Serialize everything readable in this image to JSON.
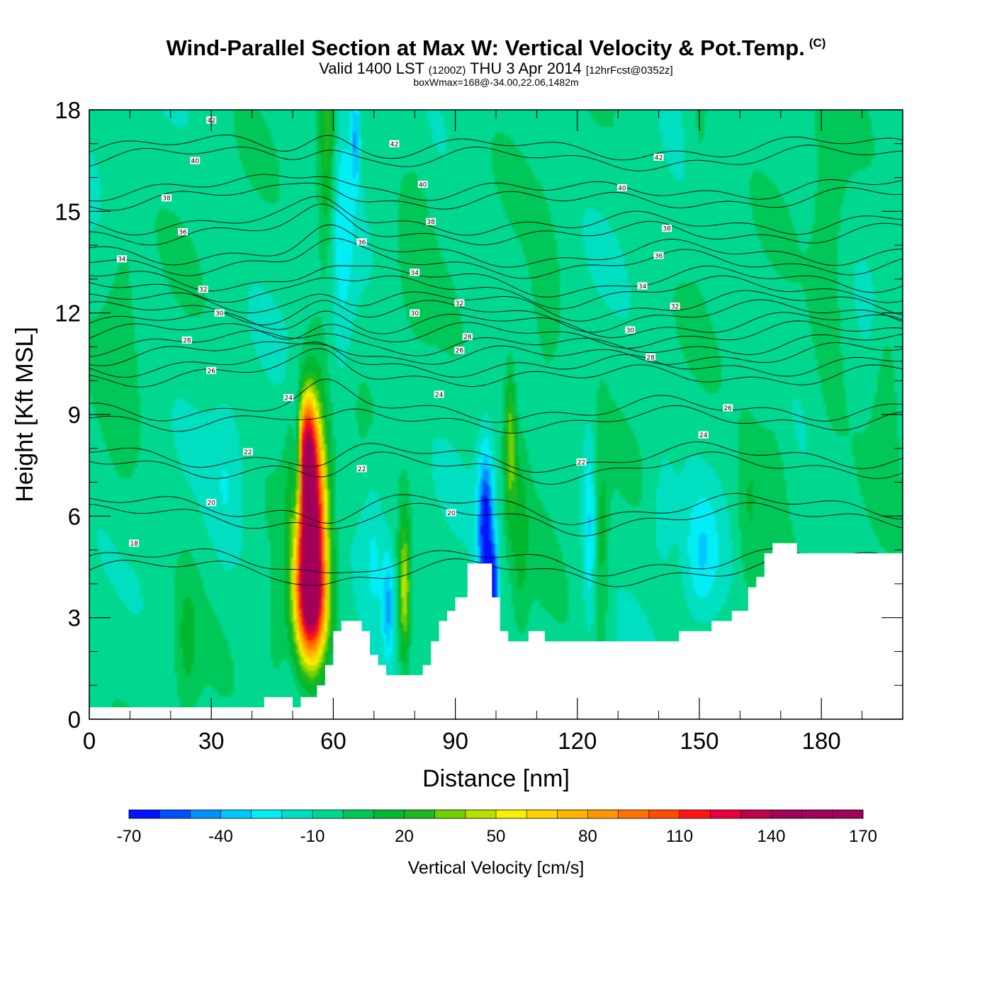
{
  "header": {
    "title": "Wind-Parallel Section at Max W: Vertical Velocity & Pot.Temp.",
    "copyright": "(C)",
    "valid_prefix": "Valid 1400 LST",
    "valid_utc": "(1200Z)",
    "valid_date": "THU 3 Apr 2014",
    "forecast_tag": "[12hrFcst@0352z]",
    "box_info": "boxWmax=168@-34.00,22.06,1482m"
  },
  "chart_data": {
    "type": "heatmap",
    "title": "Wind-Parallel Section at Max W: Vertical Velocity & Pot.Temp.",
    "xlabel": "Distance [nm]",
    "ylabel": "Height [Kft MSL]",
    "xlim": [
      0,
      200
    ],
    "ylim": [
      0,
      18
    ],
    "x_ticks": [
      0,
      30,
      60,
      90,
      120,
      150,
      180
    ],
    "y_ticks": [
      0,
      3,
      6,
      9,
      12,
      15,
      18
    ],
    "background_value": -5,
    "fill_variable": "Vertical Velocity [cm/s]",
    "contour_variable": "Potential temperature",
    "contour_levels": [
      18,
      20,
      22,
      24,
      26,
      28,
      30,
      32,
      34,
      36,
      38,
      40,
      42
    ],
    "terrain": [
      [
        0,
        0.35
      ],
      [
        43,
        0.35
      ],
      [
        43,
        0.65
      ],
      [
        50,
        0.65
      ],
      [
        50,
        0.35
      ],
      [
        52,
        0.35
      ],
      [
        52,
        0.65
      ],
      [
        56,
        0.65
      ],
      [
        56,
        1.0
      ],
      [
        58,
        1.0
      ],
      [
        58,
        1.6
      ],
      [
        60,
        1.6
      ],
      [
        60,
        2.6
      ],
      [
        62,
        2.6
      ],
      [
        62,
        2.9
      ],
      [
        67,
        2.9
      ],
      [
        67,
        2.6
      ],
      [
        69,
        2.6
      ],
      [
        69,
        1.9
      ],
      [
        71,
        1.9
      ],
      [
        71,
        1.6
      ],
      [
        73,
        1.6
      ],
      [
        73,
        1.3
      ],
      [
        82,
        1.3
      ],
      [
        82,
        1.6
      ],
      [
        84,
        1.6
      ],
      [
        84,
        2.3
      ],
      [
        86,
        2.3
      ],
      [
        86,
        2.9
      ],
      [
        88,
        2.9
      ],
      [
        88,
        3.2
      ],
      [
        90,
        3.2
      ],
      [
        90,
        3.6
      ],
      [
        93,
        3.6
      ],
      [
        93,
        4.6
      ],
      [
        99,
        4.6
      ],
      [
        99,
        3.6
      ],
      [
        101,
        3.6
      ],
      [
        101,
        2.6
      ],
      [
        103,
        2.6
      ],
      [
        103,
        2.3
      ],
      [
        108,
        2.3
      ],
      [
        108,
        2.6
      ],
      [
        112,
        2.6
      ],
      [
        112,
        2.3
      ],
      [
        145,
        2.3
      ],
      [
        145,
        2.6
      ],
      [
        153,
        2.6
      ],
      [
        153,
        2.9
      ],
      [
        158,
        2.9
      ],
      [
        158,
        3.2
      ],
      [
        162,
        3.2
      ],
      [
        162,
        3.9
      ],
      [
        164,
        3.9
      ],
      [
        164,
        4.2
      ],
      [
        166,
        4.2
      ],
      [
        166,
        4.9
      ],
      [
        168,
        4.9
      ],
      [
        168,
        5.2
      ],
      [
        174,
        5.2
      ],
      [
        174,
        4.9
      ],
      [
        200,
        4.9
      ]
    ],
    "features": [
      {
        "x": 54.5,
        "y": 5.8,
        "sx": 2.6,
        "sy": 2.2,
        "value": 168
      },
      {
        "x": 54.5,
        "y": 3.3,
        "sx": 2.8,
        "sy": 1.2,
        "value": 90
      },
      {
        "x": 53.5,
        "y": 8.2,
        "sx": 1.6,
        "sy": 1.0,
        "value": 70
      },
      {
        "x": 51.0,
        "y": 7.6,
        "sx": 0.8,
        "sy": 1.4,
        "value": -45
      },
      {
        "x": 58.5,
        "y": 16.8,
        "sx": 1.6,
        "sy": 2.2,
        "value": 35
      },
      {
        "x": 62.0,
        "y": 14.5,
        "sx": 2.2,
        "sy": 4.0,
        "value": -18
      },
      {
        "x": 65.5,
        "y": 17.2,
        "sx": 0.8,
        "sy": 1.0,
        "value": -35
      },
      {
        "x": 77.5,
        "y": 3.8,
        "sx": 1.0,
        "sy": 1.5,
        "value": 55
      },
      {
        "x": 73.5,
        "y": 3.3,
        "sx": 0.9,
        "sy": 1.1,
        "value": -30
      },
      {
        "x": 97.5,
        "y": 5.6,
        "sx": 1.4,
        "sy": 1.6,
        "value": -65
      },
      {
        "x": 99.5,
        "y": 3.9,
        "sx": 0.7,
        "sy": 0.8,
        "value": -55
      },
      {
        "x": 103.5,
        "y": 8.2,
        "sx": 1.0,
        "sy": 1.6,
        "value": 42
      },
      {
        "x": 106.0,
        "y": 5.5,
        "sx": 1.5,
        "sy": 2.0,
        "value": 18
      },
      {
        "x": 123.0,
        "y": 5.8,
        "sx": 1.2,
        "sy": 2.0,
        "value": -25
      },
      {
        "x": 126.0,
        "y": 5.0,
        "sx": 1.2,
        "sy": 2.2,
        "value": 20
      },
      {
        "x": 150.5,
        "y": 4.8,
        "sx": 3.0,
        "sy": 1.3,
        "value": -22
      },
      {
        "x": 141.0,
        "y": 6.0,
        "sx": 2.0,
        "sy": 1.2,
        "value": -12
      },
      {
        "x": 162.0,
        "y": 6.0,
        "sx": 2.0,
        "sy": 2.0,
        "value": 14
      },
      {
        "x": 168.0,
        "y": 7.2,
        "sx": 3.0,
        "sy": 1.8,
        "value": 12
      },
      {
        "x": 24.0,
        "y": 2.2,
        "sx": 2.0,
        "sy": 1.5,
        "value": 16
      },
      {
        "x": 34.0,
        "y": 7.0,
        "sx": 3.0,
        "sy": 1.8,
        "value": -12
      },
      {
        "x": 70.0,
        "y": 5.2,
        "sx": 2.0,
        "sy": 1.8,
        "value": -12
      },
      {
        "x": 46.0,
        "y": 2.4,
        "sx": 1.8,
        "sy": 1.2,
        "value": 12
      },
      {
        "x": 112.0,
        "y": 11.0,
        "sx": 3.0,
        "sy": 2.5,
        "value": 10
      },
      {
        "x": 182.0,
        "y": 14.0,
        "sx": 3.0,
        "sy": 4.0,
        "value": 12
      },
      {
        "x": 150.0,
        "y": 17.0,
        "sx": 2.0,
        "sy": 2.0,
        "value": 10
      },
      {
        "x": 8.0,
        "y": 12.0,
        "sx": 3.0,
        "sy": 4.0,
        "value": 9
      },
      {
        "x": 80.0,
        "y": 14.5,
        "sx": 3.0,
        "sy": 2.5,
        "value": 8
      },
      {
        "x": 196.0,
        "y": 9.5,
        "sx": 2.0,
        "sy": 2.0,
        "value": 14
      }
    ],
    "isentropes": [
      {
        "label": "18",
        "base": 4.4,
        "lx": 11,
        "ly": 5.2
      },
      {
        "label": "20",
        "base": 6.0,
        "lx": 30,
        "ly": 6.4
      },
      {
        "label": "22",
        "base": 7.5,
        "lx": 39,
        "ly": 7.9
      },
      {
        "label": "24",
        "base": 8.9,
        "lx": 49,
        "ly": 9.5
      },
      {
        "label": "26",
        "base": 10.2,
        "lx": 30,
        "ly": 10.3
      },
      {
        "label": "28",
        "base": 10.8,
        "lx": 24,
        "ly": 11.2
      },
      {
        "label": "30",
        "base": 11.4,
        "lx": 32,
        "ly": 12.0
      },
      {
        "label": "32",
        "base": 12.0,
        "lx": 28,
        "ly": 12.7
      },
      {
        "label": "34",
        "base": 12.7,
        "lx": 8,
        "ly": 13.6
      },
      {
        "label": "36",
        "base": 13.5,
        "lx": 24,
        "ly": 14.4
      },
      {
        "label": "38",
        "base": 14.4,
        "lx": 19,
        "ly": 15.4
      },
      {
        "label": "40",
        "base": 15.4,
        "lx": 26,
        "ly": 16.5
      },
      {
        "label": "42",
        "base": 16.6,
        "lx": 30,
        "ly": 17.7
      }
    ],
    "contour_labels": [
      {
        "text": "42",
        "x": 30,
        "y": 17.7
      },
      {
        "text": "42",
        "x": 75,
        "y": 17.0
      },
      {
        "text": "42",
        "x": 140,
        "y": 16.6
      },
      {
        "text": "40",
        "x": 26,
        "y": 16.5
      },
      {
        "text": "40",
        "x": 82,
        "y": 15.8
      },
      {
        "text": "40",
        "x": 131,
        "y": 15.7
      },
      {
        "text": "38",
        "x": 19,
        "y": 15.4
      },
      {
        "text": "38",
        "x": 84,
        "y": 14.7
      },
      {
        "text": "38",
        "x": 142,
        "y": 14.5
      },
      {
        "text": "36",
        "x": 23,
        "y": 14.4
      },
      {
        "text": "36",
        "x": 67,
        "y": 14.1
      },
      {
        "text": "36",
        "x": 140,
        "y": 13.7
      },
      {
        "text": "34",
        "x": 8,
        "y": 13.6
      },
      {
        "text": "34",
        "x": 80,
        "y": 13.2
      },
      {
        "text": "34",
        "x": 136,
        "y": 12.8
      },
      {
        "text": "32",
        "x": 28,
        "y": 12.7
      },
      {
        "text": "32",
        "x": 91,
        "y": 12.3
      },
      {
        "text": "32",
        "x": 144,
        "y": 12.2
      },
      {
        "text": "30",
        "x": 32,
        "y": 12.0
      },
      {
        "text": "30",
        "x": 80,
        "y": 12.0
      },
      {
        "text": "30",
        "x": 133,
        "y": 11.5
      },
      {
        "text": "28",
        "x": 24,
        "y": 11.2
      },
      {
        "text": "28",
        "x": 93,
        "y": 11.3
      },
      {
        "text": "28",
        "x": 138,
        "y": 10.7
      },
      {
        "text": "26",
        "x": 30,
        "y": 10.3
      },
      {
        "text": "26",
        "x": 91,
        "y": 10.9
      },
      {
        "text": "26",
        "x": 157,
        "y": 9.2
      },
      {
        "text": "24",
        "x": 49,
        "y": 9.5
      },
      {
        "text": "24",
        "x": 86,
        "y": 9.6
      },
      {
        "text": "24",
        "x": 151,
        "y": 8.4
      },
      {
        "text": "22",
        "x": 39,
        "y": 7.9
      },
      {
        "text": "22",
        "x": 67,
        "y": 7.4
      },
      {
        "text": "22",
        "x": 121,
        "y": 7.6
      },
      {
        "text": "20",
        "x": 30,
        "y": 6.4
      },
      {
        "text": "20",
        "x": 89,
        "y": 6.1
      },
      {
        "text": "18",
        "x": 11,
        "y": 5.2
      }
    ],
    "colorbar": {
      "title": "Vertical Velocity [cm/s]",
      "label_values": [
        "-70",
        "-40",
        "-10",
        "20",
        "50",
        "80",
        "110",
        "140",
        "170"
      ],
      "min": -70,
      "max": 170,
      "colors": [
        "#0014ff",
        "#0050ff",
        "#0090ff",
        "#00c8ff",
        "#00eef4",
        "#00e0c0",
        "#00d890",
        "#00c858",
        "#00b830",
        "#20b820",
        "#70d000",
        "#b8e000",
        "#f8f000",
        "#ffd200",
        "#ffb400",
        "#ff9600",
        "#ff7200",
        "#ff4c00",
        "#ff1414",
        "#e8003a",
        "#c0004a",
        "#a00058",
        "#a00058",
        "#a00058"
      ]
    }
  }
}
